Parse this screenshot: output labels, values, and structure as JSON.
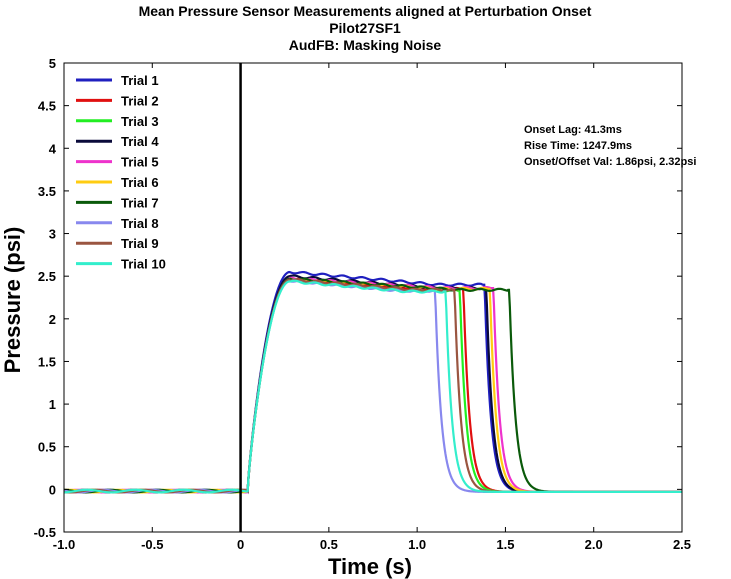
{
  "chart_data": {
    "type": "line",
    "title": [
      "Mean Pressure Sensor Measurements aligned at Perturbation Onset",
      "Pilot27SF1",
      "AudFB: Masking Noise"
    ],
    "xlabel": "Time (s)",
    "ylabel": "Pressure (psi)",
    "xlim": [
      -1.0,
      2.5
    ],
    "ylim": [
      -0.5,
      5
    ],
    "xticks": [
      -1.0,
      -0.5,
      0,
      0.5,
      1.0,
      1.5,
      2.0,
      2.5
    ],
    "xtick_labels": [
      "-1.0",
      "-0.5",
      "0",
      "0.5",
      "1.0",
      "1.5",
      "2.0",
      "2.5"
    ],
    "yticks": [
      -0.5,
      0,
      0.5,
      1,
      1.5,
      2,
      2.5,
      3,
      3.5,
      4,
      4.5,
      5
    ],
    "ytick_labels": [
      "-0.5",
      "0",
      "0.5",
      "1",
      "1.5",
      "2",
      "2.5",
      "3",
      "3.5",
      "4",
      "4.5",
      "5"
    ],
    "grid": false,
    "legend_position": "top-left",
    "onset_marker_x": 0,
    "annotations": [
      "Onset Lag: 41.3ms",
      "Rise Time: 1247.9ms",
      "Onset/Offset Val: 1.86psi, 2.32psi"
    ],
    "series": [
      {
        "name": "Trial 1",
        "color": "#1f1fbf",
        "peak": 2.55,
        "plateau_end": 2.4,
        "offset": 1.37
      },
      {
        "name": "Trial 2",
        "color": "#e01010",
        "peak": 2.47,
        "plateau_end": 2.35,
        "offset": 1.25
      },
      {
        "name": "Trial 3",
        "color": "#22ee22",
        "peak": 2.45,
        "plateau_end": 2.33,
        "offset": 1.23
      },
      {
        "name": "Trial 4",
        "color": "#0a0a3a",
        "peak": 2.5,
        "plateau_end": 2.36,
        "offset": 1.38
      },
      {
        "name": "Trial 5",
        "color": "#ee33cc",
        "peak": 2.47,
        "plateau_end": 2.36,
        "offset": 1.42
      },
      {
        "name": "Trial 6",
        "color": "#ffcc11",
        "peak": 2.46,
        "plateau_end": 2.35,
        "offset": 1.4
      },
      {
        "name": "Trial 7",
        "color": "#0a5a0a",
        "peak": 2.47,
        "plateau_end": 2.34,
        "offset": 1.51
      },
      {
        "name": "Trial 8",
        "color": "#8888ee",
        "peak": 2.45,
        "plateau_end": 2.33,
        "offset": 1.09
      },
      {
        "name": "Trial 9",
        "color": "#9a5540",
        "peak": 2.46,
        "plateau_end": 2.34,
        "offset": 1.2
      },
      {
        "name": "Trial 10",
        "color": "#33eecc",
        "peak": 2.44,
        "plateau_end": 2.32,
        "offset": 1.15
      }
    ]
  }
}
